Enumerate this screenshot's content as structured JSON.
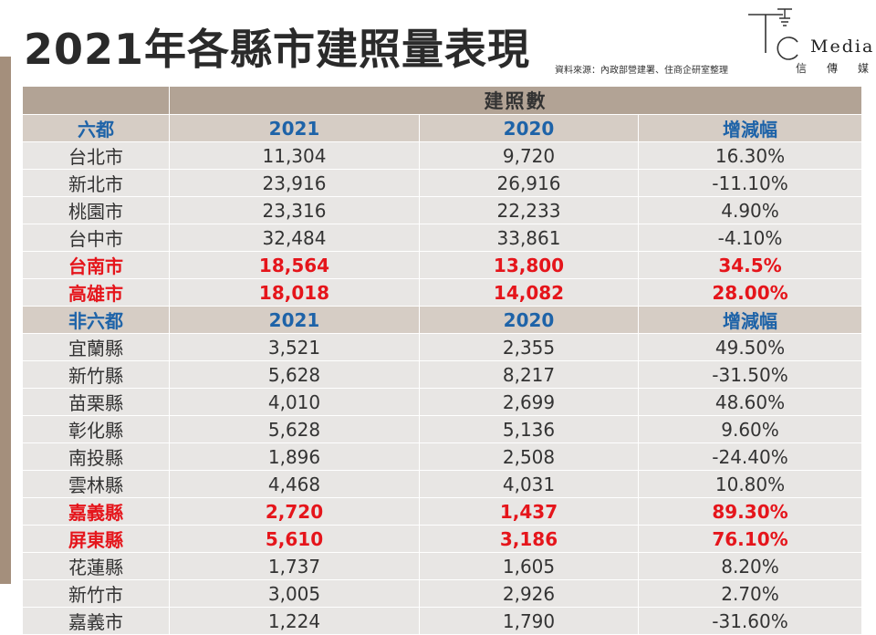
{
  "title": "2021年各縣市建照量表現",
  "source": "資料來源：內政部營建署、住商企研室整理",
  "logo": {
    "text": "Media",
    "sub": "信傳媒"
  },
  "table": {
    "banner": "建照數",
    "six": {
      "header": [
        "六都",
        "2021",
        "2020",
        "增減幅"
      ],
      "rows": [
        {
          "city": "台北市",
          "y2021": "11,304",
          "y2020": "9,720",
          "change": "16.30%"
        },
        {
          "city": "新北市",
          "y2021": "23,916",
          "y2020": "26,916",
          "change": "-11.10%"
        },
        {
          "city": "桃園市",
          "y2021": "23,316",
          "y2020": "22,233",
          "change": "4.90%"
        },
        {
          "city": "台中市",
          "y2021": "32,484",
          "y2020": "33,861",
          "change": "-4.10%"
        },
        {
          "city": "台南市",
          "y2021": "18,564",
          "y2020": "13,800",
          "change": "34.5%",
          "highlight": true
        },
        {
          "city": "高雄市",
          "y2021": "18,018",
          "y2020": "14,082",
          "change": "28.00%",
          "highlight": true
        }
      ]
    },
    "nonsix": {
      "header": [
        "非六都",
        "2021",
        "2020",
        "增減幅"
      ],
      "rows": [
        {
          "city": "宜蘭縣",
          "y2021": "3,521",
          "y2020": "2,355",
          "change": "49.50%"
        },
        {
          "city": "新竹縣",
          "y2021": "5,628",
          "y2020": "8,217",
          "change": "-31.50%"
        },
        {
          "city": "苗栗縣",
          "y2021": "4,010",
          "y2020": "2,699",
          "change": "48.60%"
        },
        {
          "city": "彰化縣",
          "y2021": "5,628",
          "y2020": "5,136",
          "change": "9.60%"
        },
        {
          "city": "南投縣",
          "y2021": "1,896",
          "y2020": "2,508",
          "change": "-24.40%"
        },
        {
          "city": "雲林縣",
          "y2021": "4,468",
          "y2020": "4,031",
          "change": "10.80%"
        },
        {
          "city": "嘉義縣",
          "y2021": "2,720",
          "y2020": "1,437",
          "change": "89.30%",
          "highlight": true
        },
        {
          "city": "屏東縣",
          "y2021": "5,610",
          "y2020": "3,186",
          "change": "76.10%",
          "highlight": true
        },
        {
          "city": "花蓮縣",
          "y2021": "1,737",
          "y2020": "1,605",
          "change": "8.20%"
        },
        {
          "city": "新竹市",
          "y2021": "3,005",
          "y2020": "2,926",
          "change": "2.70%"
        },
        {
          "city": "嘉義市",
          "y2021": "1,224",
          "y2020": "1,790",
          "change": "-31.60%"
        }
      ]
    }
  }
}
